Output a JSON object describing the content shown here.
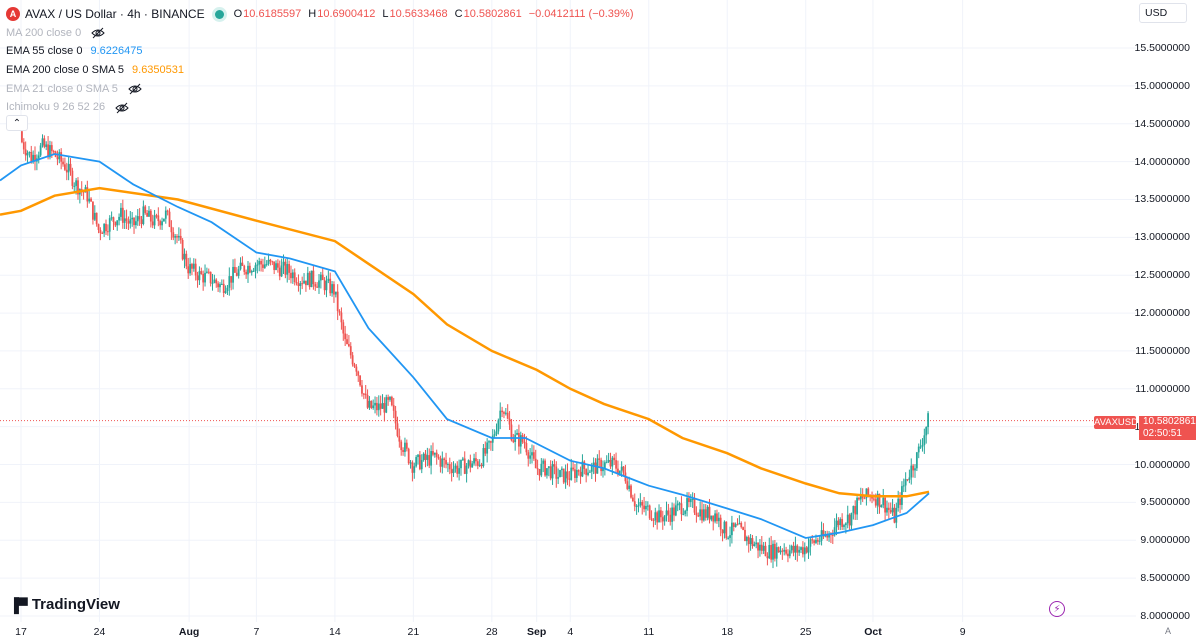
{
  "header": {
    "symbol_icon": "avax-logo-icon",
    "title": "AVAX / US Dollar · 4h · BINANCE",
    "ohlc": [
      {
        "label": "O",
        "value": "10.6185597"
      },
      {
        "label": "H",
        "value": "10.6900412"
      },
      {
        "label": "L",
        "value": "10.5633468"
      },
      {
        "label": "C",
        "value": "10.5802861"
      }
    ],
    "change": "−0.0412111 (−0.39%)"
  },
  "indicators": [
    {
      "name": "MA 200 close 0",
      "value": "",
      "hidden": true
    },
    {
      "name": "EMA 55 close 0",
      "value": "9.6226475",
      "hidden": false,
      "color": "#2196f3"
    },
    {
      "name": "EMA 200 close 0 SMA 5",
      "value": "9.6350531",
      "hidden": false,
      "color": "#ff9800"
    },
    {
      "name": "EMA 21 close 0 SMA 5",
      "value": "",
      "hidden": true
    },
    {
      "name": "Ichimoku 9 26 52 26",
      "value": "",
      "hidden": true
    }
  ],
  "currency_button": "USD",
  "price_label": {
    "symbol": "AVAXUSD",
    "price": "10.5802861",
    "countdown": "02:50:51"
  },
  "y_ticks": [
    "15.5000000",
    "15.0000000",
    "14.5000000",
    "14.0000000",
    "13.5000000",
    "13.0000000",
    "12.5000000",
    "12.0000000",
    "11.5000000",
    "11.0000000",
    "10.5000000",
    "10.0000000",
    "9.5000000",
    "9.0000000",
    "8.5000000",
    "8.0000000"
  ],
  "x_ticks": [
    "17",
    "24",
    "Aug",
    "7",
    "14",
    "21",
    "28",
    "Sep",
    "4",
    "11",
    "18",
    "25",
    "Oct",
    "9"
  ],
  "brand": "TradingView",
  "colors": {
    "up": "#26a69a",
    "down": "#ef5350",
    "ema55": "#2196f3",
    "ema200": "#ff9800",
    "grid": "#f0f3fa"
  },
  "chart_data": {
    "type": "candlestick",
    "title": "AVAX / US Dollar · 4h · BINANCE",
    "ylim": [
      8.0,
      15.75
    ],
    "x_range": [
      "Jul 17",
      "Oct 9"
    ],
    "series": [
      {
        "name": "EMA 55 close 0",
        "color": "#2196f3",
        "points": [
          [
            "Jul 17",
            13.95
          ],
          [
            "Jul 20",
            14.1
          ],
          [
            "Jul 24",
            14.0
          ],
          [
            "Jul 27",
            13.7
          ],
          [
            "Jul 31",
            13.4
          ],
          [
            "Aug 3",
            13.2
          ],
          [
            "Aug 7",
            12.8
          ],
          [
            "Aug 10",
            12.72
          ],
          [
            "Aug 14",
            12.55
          ],
          [
            "Aug 17",
            11.8
          ],
          [
            "Aug 21",
            11.15
          ],
          [
            "Aug 24",
            10.6
          ],
          [
            "Aug 28",
            10.35
          ],
          [
            "Aug 31",
            10.35
          ],
          [
            "Sep 4",
            10.05
          ],
          [
            "Sep 7",
            9.95
          ],
          [
            "Sep 11",
            9.72
          ],
          [
            "Sep 14",
            9.6
          ],
          [
            "Sep 18",
            9.42
          ],
          [
            "Sep 21",
            9.28
          ],
          [
            "Sep 25",
            9.03
          ],
          [
            "Sep 28",
            9.1
          ],
          [
            "Oct 1",
            9.2
          ],
          [
            "Oct 4",
            9.36
          ],
          [
            "Oct 6",
            9.62
          ]
        ]
      },
      {
        "name": "EMA 200 close 0 SMA 5",
        "color": "#ff9800",
        "points": [
          [
            "Jul 17",
            13.35
          ],
          [
            "Jul 20",
            13.55
          ],
          [
            "Jul 24",
            13.65
          ],
          [
            "Jul 31",
            13.5
          ],
          [
            "Aug 7",
            13.22
          ],
          [
            "Aug 14",
            12.95
          ],
          [
            "Aug 17",
            12.65
          ],
          [
            "Aug 21",
            12.25
          ],
          [
            "Aug 24",
            11.85
          ],
          [
            "Aug 28",
            11.5
          ],
          [
            "Sep 1",
            11.25
          ],
          [
            "Sep 4",
            11.0
          ],
          [
            "Sep 7",
            10.8
          ],
          [
            "Sep 11",
            10.6
          ],
          [
            "Sep 14",
            10.35
          ],
          [
            "Sep 18",
            10.15
          ],
          [
            "Sep 21",
            9.95
          ],
          [
            "Sep 25",
            9.75
          ],
          [
            "Sep 28",
            9.62
          ],
          [
            "Oct 1",
            9.58
          ],
          [
            "Oct 4",
            9.58
          ],
          [
            "Oct 6",
            9.64
          ]
        ]
      }
    ],
    "candles_daily_close": [
      [
        "Jul 17",
        14.3
      ],
      [
        "Jul 18",
        14.05
      ],
      [
        "Jul 19",
        14.2
      ],
      [
        "Jul 20",
        14.1
      ],
      [
        "Jul 21",
        13.95
      ],
      [
        "Jul 22",
        13.7
      ],
      [
        "Jul 23",
        13.55
      ],
      [
        "Jul 24",
        13.1
      ],
      [
        "Jul 25",
        13.2
      ],
      [
        "Jul 26",
        13.3
      ],
      [
        "Jul 27",
        13.15
      ],
      [
        "Jul 28",
        13.3
      ],
      [
        "Jul 29",
        13.2
      ],
      [
        "Jul 30",
        13.3
      ],
      [
        "Jul 31",
        13.0
      ],
      [
        "Aug 1",
        12.6
      ],
      [
        "Aug 2",
        12.5
      ],
      [
        "Aug 3",
        12.45
      ],
      [
        "Aug 4",
        12.35
      ],
      [
        "Aug 5",
        12.5
      ],
      [
        "Aug 6",
        12.6
      ],
      [
        "Aug 7",
        12.65
      ],
      [
        "Aug 8",
        12.65
      ],
      [
        "Aug 9",
        12.6
      ],
      [
        "Aug 10",
        12.55
      ],
      [
        "Aug 11",
        12.45
      ],
      [
        "Aug 12",
        12.45
      ],
      [
        "Aug 13",
        12.4
      ],
      [
        "Aug 14",
        12.3
      ],
      [
        "Aug 15",
        11.6
      ],
      [
        "Aug 16",
        11.3
      ],
      [
        "Aug 17",
        10.75
      ],
      [
        "Aug 18",
        10.75
      ],
      [
        "Aug 19",
        10.8
      ],
      [
        "Aug 20",
        10.3
      ],
      [
        "Aug 21",
        10.0
      ],
      [
        "Aug 22",
        10.05
      ],
      [
        "Aug 23",
        10.1
      ],
      [
        "Aug 24",
        10.0
      ],
      [
        "Aug 25",
        9.95
      ],
      [
        "Aug 26",
        10.0
      ],
      [
        "Aug 27",
        10.05
      ],
      [
        "Aug 28",
        10.25
      ],
      [
        "Aug 29",
        10.8
      ],
      [
        "Aug 30",
        10.35
      ],
      [
        "Aug 31",
        10.3
      ],
      [
        "Sep 1",
        9.95
      ],
      [
        "Sep 2",
        9.95
      ],
      [
        "Sep 3",
        9.85
      ],
      [
        "Sep 4",
        9.85
      ],
      [
        "Sep 5",
        9.95
      ],
      [
        "Sep 6",
        9.95
      ],
      [
        "Sep 7",
        10.0
      ],
      [
        "Sep 8",
        10.0
      ],
      [
        "Sep 9",
        9.85
      ],
      [
        "Sep 10",
        9.45
      ],
      [
        "Sep 11",
        9.4
      ],
      [
        "Sep 12",
        9.3
      ],
      [
        "Sep 13",
        9.35
      ],
      [
        "Sep 14",
        9.45
      ],
      [
        "Sep 15",
        9.45
      ],
      [
        "Sep 16",
        9.35
      ],
      [
        "Sep 17",
        9.35
      ],
      [
        "Sep 18",
        9.1
      ],
      [
        "Sep 19",
        9.15
      ],
      [
        "Sep 20",
        9.0
      ],
      [
        "Sep 21",
        8.9
      ],
      [
        "Sep 22",
        8.85
      ],
      [
        "Sep 23",
        8.9
      ],
      [
        "Sep 24",
        8.85
      ],
      [
        "Sep 25",
        8.9
      ],
      [
        "Sep 26",
        9.0
      ],
      [
        "Sep 27",
        9.05
      ],
      [
        "Sep 28",
        9.25
      ],
      [
        "Sep 29",
        9.3
      ],
      [
        "Sep 30",
        9.55
      ],
      [
        "Oct 1",
        9.6
      ],
      [
        "Oct 2",
        9.5
      ],
      [
        "Oct 3",
        9.3
      ],
      [
        "Oct 4",
        9.8
      ],
      [
        "Oct 5",
        10.1
      ],
      [
        "Oct 6",
        10.58
      ]
    ],
    "last_price": 10.5802861,
    "grid": true
  }
}
